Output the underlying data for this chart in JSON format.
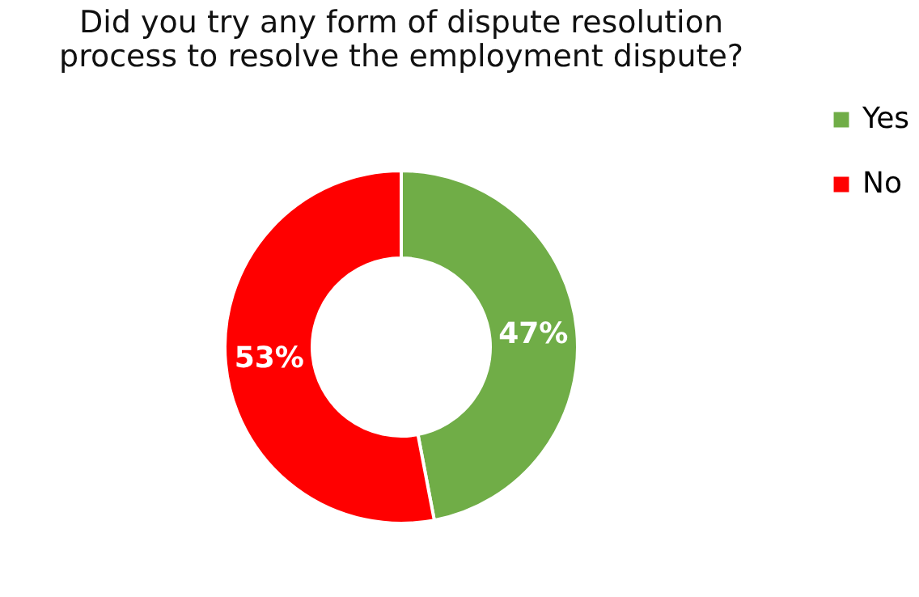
{
  "chart_data": {
    "type": "donut",
    "title": [
      "Did you try any form of dispute resolution",
      "process to resolve the employment dispute?"
    ],
    "categories": [
      "Yes",
      "No"
    ],
    "values": [
      47,
      53
    ],
    "colors": [
      "#70ad47",
      "#ff0000"
    ],
    "value_labels": [
      "47%",
      "53%"
    ],
    "legend": "right"
  }
}
